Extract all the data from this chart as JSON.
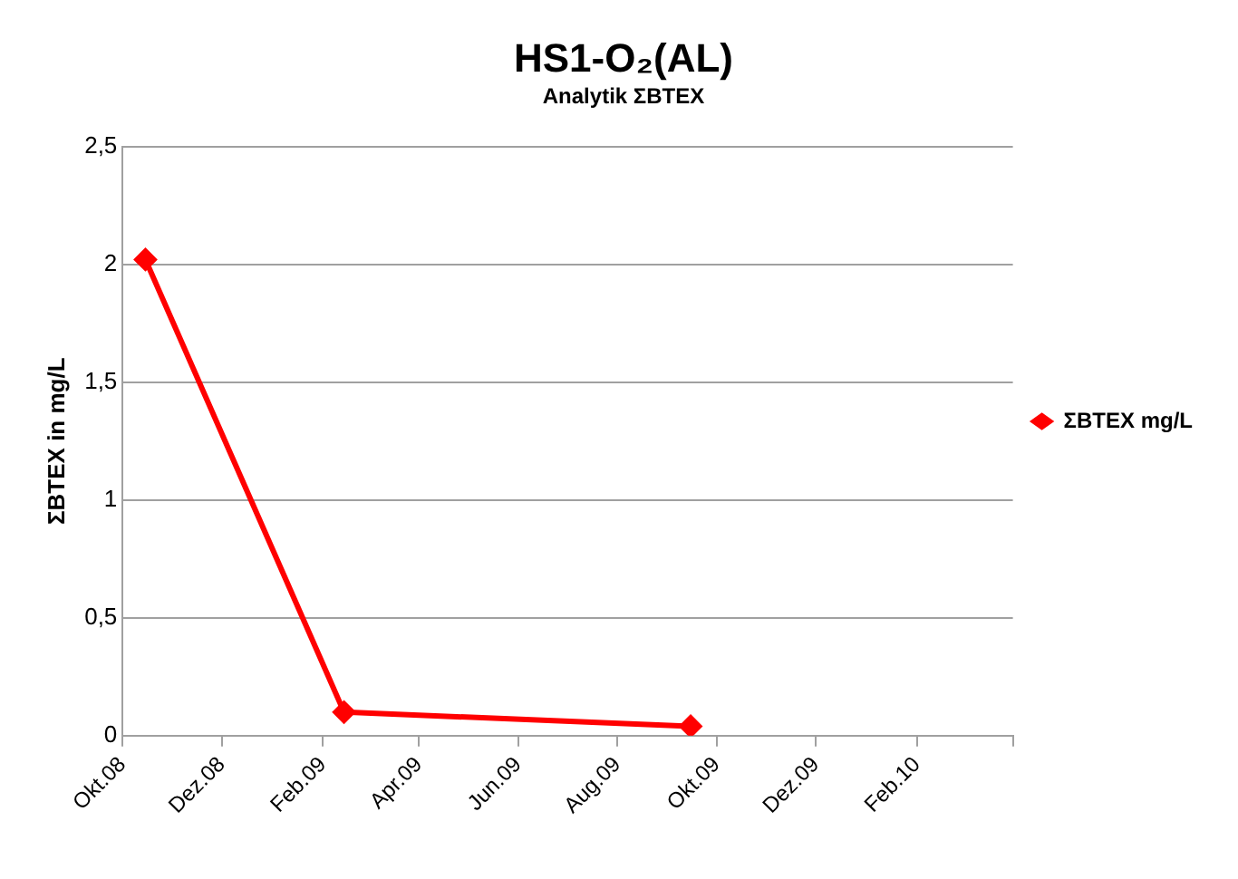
{
  "chart_data": {
    "type": "line",
    "title": "HS1-O₂(AL)",
    "subtitle": "Analytik ΣBTEX",
    "ylabel": "ΣBTEX in mg/L",
    "x": [
      "2008-10-15",
      "2009-02-14",
      "2009-09-15"
    ],
    "series": [
      {
        "name": "ΣBTEX mg/L",
        "color": "#ff0000",
        "values": [
          2.02,
          0.1,
          0.04
        ]
      }
    ],
    "xlim": [
      "2008-10-01",
      "2010-04-01"
    ],
    "xticks": [
      {
        "value": "2008-10-01",
        "label": "Okt.08"
      },
      {
        "value": "2008-12-01",
        "label": "Dez.08"
      },
      {
        "value": "2009-02-01",
        "label": "Feb.09"
      },
      {
        "value": "2009-04-01",
        "label": "Apr.09"
      },
      {
        "value": "2009-06-01",
        "label": "Jun.09"
      },
      {
        "value": "2009-08-01",
        "label": "Aug.09"
      },
      {
        "value": "2009-10-01",
        "label": "Okt.09"
      },
      {
        "value": "2009-12-01",
        "label": "Dez.09"
      },
      {
        "value": "2010-02-01",
        "label": "Feb.10"
      },
      {
        "value": "2010-04-01",
        "label": null
      }
    ],
    "ylim": [
      0,
      2.5
    ],
    "yticks": [
      {
        "value": 0,
        "label": "0"
      },
      {
        "value": 0.5,
        "label": "0,5"
      },
      {
        "value": 1,
        "label": "1"
      },
      {
        "value": 1.5,
        "label": "1,5"
      },
      {
        "value": 2,
        "label": "2"
      },
      {
        "value": 2.5,
        "label": "2,5"
      }
    ],
    "grid": "y",
    "legend": "right",
    "marker": "diamond",
    "line_style": "solid"
  }
}
